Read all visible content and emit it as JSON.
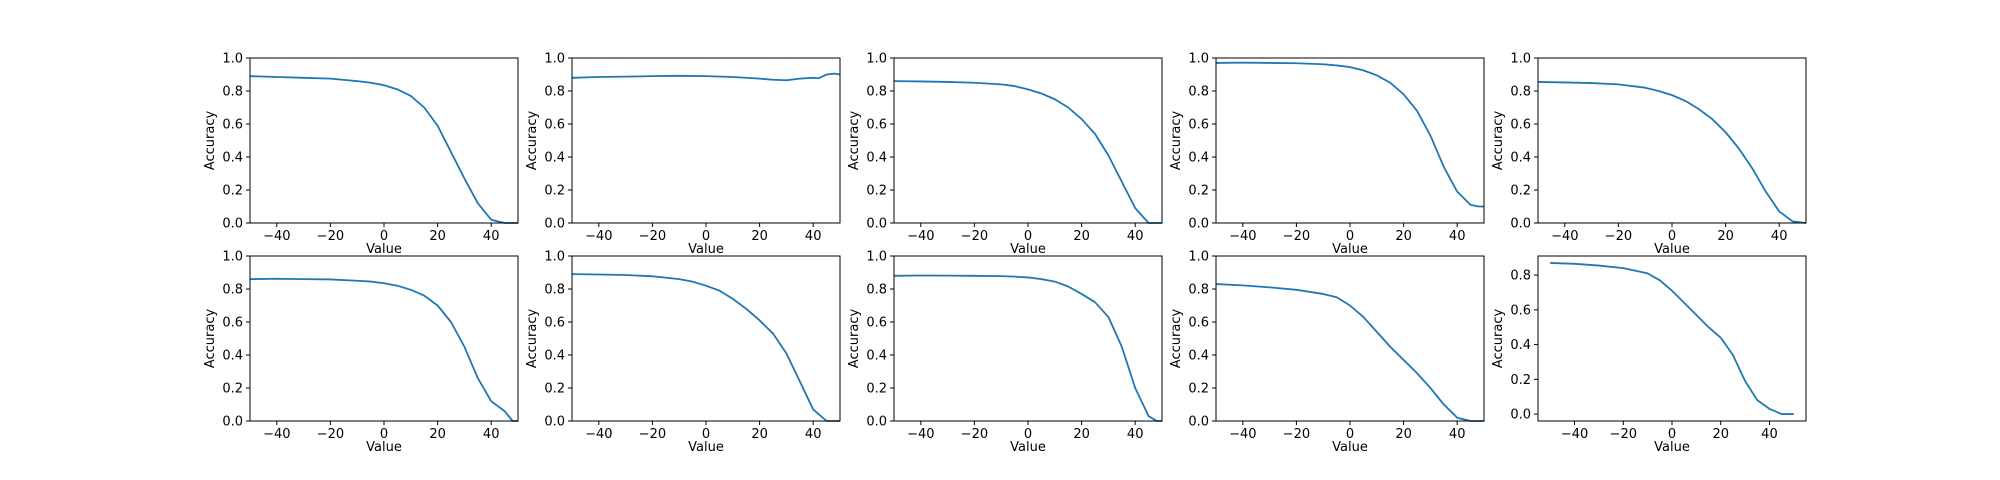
{
  "figure": {
    "background": "#ffffff",
    "line_color": "#1f77b4",
    "grid": false,
    "legend": "none"
  },
  "chart_data": [
    {
      "type": "line",
      "xlabel": "Value",
      "ylabel": "Accuracy",
      "xlim": [
        -50,
        50
      ],
      "ylim": [
        0,
        1
      ],
      "xticks": [
        -40,
        -20,
        0,
        20,
        40
      ],
      "xtick_labels": [
        "−40",
        "−20",
        "0",
        "20",
        "40"
      ],
      "yticks": [
        0,
        0.2,
        0.4,
        0.6,
        0.8,
        1.0
      ],
      "ytick_labels": [
        "0.0",
        "0.2",
        "0.4",
        "0.6",
        "0.8",
        "1.0"
      ],
      "series": [
        {
          "x": [
            -50,
            -40,
            -30,
            -20,
            -10,
            -5,
            0,
            5,
            10,
            15,
            20,
            25,
            30,
            35,
            40,
            45,
            50
          ],
          "y": [
            0.89,
            0.885,
            0.88,
            0.875,
            0.86,
            0.85,
            0.835,
            0.81,
            0.77,
            0.7,
            0.59,
            0.43,
            0.27,
            0.12,
            0.02,
            0.0,
            0.0
          ]
        }
      ]
    },
    {
      "type": "line",
      "xlabel": "Value",
      "ylabel": "Accuracy",
      "xlim": [
        -50,
        50
      ],
      "ylim": [
        0,
        1
      ],
      "xticks": [
        -40,
        -20,
        0,
        20,
        40
      ],
      "xtick_labels": [
        "−40",
        "−20",
        "0",
        "20",
        "40"
      ],
      "yticks": [
        0,
        0.2,
        0.4,
        0.6,
        0.8,
        1.0
      ],
      "ytick_labels": [
        "0.0",
        "0.2",
        "0.4",
        "0.6",
        "0.8",
        "1.0"
      ],
      "series": [
        {
          "x": [
            -50,
            -40,
            -30,
            -20,
            -10,
            0,
            10,
            20,
            25,
            30,
            35,
            40,
            42,
            45,
            48,
            50
          ],
          "y": [
            0.88,
            0.885,
            0.887,
            0.89,
            0.892,
            0.89,
            0.885,
            0.875,
            0.868,
            0.865,
            0.875,
            0.88,
            0.877,
            0.9,
            0.905,
            0.9
          ]
        }
      ]
    },
    {
      "type": "line",
      "xlabel": "Value",
      "ylabel": "Accuracy",
      "xlim": [
        -50,
        50
      ],
      "ylim": [
        0,
        1
      ],
      "xticks": [
        -40,
        -20,
        0,
        20,
        40
      ],
      "xtick_labels": [
        "−40",
        "−20",
        "0",
        "20",
        "40"
      ],
      "yticks": [
        0,
        0.2,
        0.4,
        0.6,
        0.8,
        1.0
      ],
      "ytick_labels": [
        "0.0",
        "0.2",
        "0.4",
        "0.6",
        "0.8",
        "1.0"
      ],
      "series": [
        {
          "x": [
            -50,
            -40,
            -30,
            -20,
            -10,
            -5,
            0,
            5,
            10,
            15,
            20,
            25,
            30,
            35,
            40,
            45,
            50
          ],
          "y": [
            0.86,
            0.858,
            0.855,
            0.85,
            0.84,
            0.83,
            0.81,
            0.785,
            0.75,
            0.7,
            0.63,
            0.54,
            0.41,
            0.25,
            0.09,
            0.0,
            0.0
          ]
        }
      ]
    },
    {
      "type": "line",
      "xlabel": "Value",
      "ylabel": "Accuracy",
      "xlim": [
        -50,
        50
      ],
      "ylim": [
        0,
        1
      ],
      "xticks": [
        -40,
        -20,
        0,
        20,
        40
      ],
      "xtick_labels": [
        "−40",
        "−20",
        "0",
        "20",
        "40"
      ],
      "yticks": [
        0,
        0.2,
        0.4,
        0.6,
        0.8,
        1.0
      ],
      "ytick_labels": [
        "0.0",
        "0.2",
        "0.4",
        "0.6",
        "0.8",
        "1.0"
      ],
      "series": [
        {
          "x": [
            -50,
            -40,
            -30,
            -20,
            -10,
            -5,
            0,
            5,
            10,
            15,
            20,
            25,
            30,
            35,
            40,
            45,
            48,
            50
          ],
          "y": [
            0.97,
            0.972,
            0.97,
            0.968,
            0.962,
            0.955,
            0.945,
            0.925,
            0.895,
            0.85,
            0.78,
            0.68,
            0.53,
            0.34,
            0.19,
            0.11,
            0.1,
            0.1
          ]
        }
      ]
    },
    {
      "type": "line",
      "xlabel": "Value",
      "ylabel": "Accuracy",
      "xlim": [
        -50,
        50
      ],
      "ylim": [
        0,
        1
      ],
      "xticks": [
        -40,
        -20,
        0,
        20,
        40
      ],
      "xtick_labels": [
        "−40",
        "−20",
        "0",
        "20",
        "40"
      ],
      "yticks": [
        0,
        0.2,
        0.4,
        0.6,
        0.8,
        1.0
      ],
      "ytick_labels": [
        "0.0",
        "0.2",
        "0.4",
        "0.6",
        "0.8",
        "1.0"
      ],
      "series": [
        {
          "x": [
            -50,
            -40,
            -30,
            -20,
            -10,
            -5,
            0,
            5,
            10,
            15,
            20,
            25,
            30,
            35,
            40,
            45,
            50
          ],
          "y": [
            0.855,
            0.852,
            0.848,
            0.84,
            0.82,
            0.8,
            0.775,
            0.74,
            0.69,
            0.63,
            0.55,
            0.45,
            0.33,
            0.19,
            0.07,
            0.01,
            0.0
          ]
        }
      ]
    },
    {
      "type": "line",
      "xlabel": "Value",
      "ylabel": "Accuracy",
      "xlim": [
        -50,
        50
      ],
      "ylim": [
        0,
        1
      ],
      "xticks": [
        -40,
        -20,
        0,
        20,
        40
      ],
      "xtick_labels": [
        "−40",
        "−20",
        "0",
        "20",
        "40"
      ],
      "yticks": [
        0,
        0.2,
        0.4,
        0.6,
        0.8,
        1.0
      ],
      "ytick_labels": [
        "0.0",
        "0.2",
        "0.4",
        "0.6",
        "0.8",
        "1.0"
      ],
      "series": [
        {
          "x": [
            -50,
            -40,
            -30,
            -20,
            -10,
            -5,
            0,
            5,
            10,
            15,
            20,
            25,
            30,
            35,
            40,
            45,
            48,
            50
          ],
          "y": [
            0.86,
            0.862,
            0.86,
            0.858,
            0.85,
            0.845,
            0.835,
            0.82,
            0.795,
            0.76,
            0.7,
            0.6,
            0.45,
            0.26,
            0.12,
            0.06,
            0.0,
            0.0
          ]
        }
      ]
    },
    {
      "type": "line",
      "xlabel": "Value",
      "ylabel": "Accuracy",
      "xlim": [
        -50,
        50
      ],
      "ylim": [
        0,
        1
      ],
      "xticks": [
        -40,
        -20,
        0,
        20,
        40
      ],
      "xtick_labels": [
        "−40",
        "−20",
        "0",
        "20",
        "40"
      ],
      "yticks": [
        0,
        0.2,
        0.4,
        0.6,
        0.8,
        1.0
      ],
      "ytick_labels": [
        "0.0",
        "0.2",
        "0.4",
        "0.6",
        "0.8",
        "1.0"
      ],
      "series": [
        {
          "x": [
            -50,
            -40,
            -30,
            -20,
            -10,
            -5,
            0,
            5,
            10,
            15,
            20,
            25,
            30,
            35,
            40,
            45,
            50
          ],
          "y": [
            0.89,
            0.888,
            0.885,
            0.877,
            0.86,
            0.845,
            0.82,
            0.79,
            0.74,
            0.68,
            0.61,
            0.53,
            0.41,
            0.24,
            0.07,
            0.0,
            0.0
          ]
        }
      ]
    },
    {
      "type": "line",
      "xlabel": "Value",
      "ylabel": "Accuracy",
      "xlim": [
        -50,
        50
      ],
      "ylim": [
        0,
        1
      ],
      "xticks": [
        -40,
        -20,
        0,
        20,
        40
      ],
      "xtick_labels": [
        "−40",
        "−20",
        "0",
        "20",
        "40"
      ],
      "yticks": [
        0,
        0.2,
        0.4,
        0.6,
        0.8,
        1.0
      ],
      "ytick_labels": [
        "0.0",
        "0.2",
        "0.4",
        "0.6",
        "0.8",
        "1.0"
      ],
      "series": [
        {
          "x": [
            -50,
            -40,
            -30,
            -20,
            -10,
            -5,
            0,
            5,
            10,
            15,
            20,
            25,
            30,
            35,
            40,
            45,
            48,
            50
          ],
          "y": [
            0.88,
            0.882,
            0.881,
            0.88,
            0.878,
            0.875,
            0.87,
            0.86,
            0.845,
            0.815,
            0.77,
            0.72,
            0.63,
            0.45,
            0.2,
            0.03,
            0.0,
            0.0
          ]
        }
      ]
    },
    {
      "type": "line",
      "xlabel": "Value",
      "ylabel": "Accuracy",
      "xlim": [
        -50,
        50
      ],
      "ylim": [
        0,
        1
      ],
      "xticks": [
        -40,
        -20,
        0,
        20,
        40
      ],
      "xtick_labels": [
        "−40",
        "−20",
        "0",
        "20",
        "40"
      ],
      "yticks": [
        0,
        0.2,
        0.4,
        0.6,
        0.8,
        1.0
      ],
      "ytick_labels": [
        "0.0",
        "0.2",
        "0.4",
        "0.6",
        "0.8",
        "1.0"
      ],
      "series": [
        {
          "x": [
            -50,
            -40,
            -30,
            -20,
            -10,
            -5,
            0,
            5,
            10,
            15,
            20,
            25,
            30,
            35,
            40,
            45,
            50
          ],
          "y": [
            0.83,
            0.822,
            0.81,
            0.795,
            0.77,
            0.75,
            0.7,
            0.63,
            0.54,
            0.45,
            0.37,
            0.29,
            0.2,
            0.1,
            0.02,
            0.0,
            0.0
          ]
        }
      ]
    },
    {
      "type": "line",
      "xlabel": "Value",
      "ylabel": "Accuracy",
      "xlim": [
        -55,
        55
      ],
      "ylim": [
        -0.04,
        0.91
      ],
      "xticks": [
        -40,
        -20,
        0,
        20,
        40
      ],
      "xtick_labels": [
        "−40",
        "−20",
        "0",
        "20",
        "40"
      ],
      "yticks": [
        0,
        0.2,
        0.4,
        0.6,
        0.8
      ],
      "ytick_labels": [
        "0.0",
        "0.2",
        "0.4",
        "0.6",
        "0.8"
      ],
      "series": [
        {
          "x": [
            -50,
            -40,
            -30,
            -20,
            -10,
            -5,
            0,
            5,
            10,
            15,
            20,
            25,
            30,
            35,
            40,
            45,
            48,
            50
          ],
          "y": [
            0.87,
            0.865,
            0.855,
            0.84,
            0.81,
            0.77,
            0.71,
            0.64,
            0.57,
            0.5,
            0.44,
            0.34,
            0.19,
            0.08,
            0.03,
            0.0,
            0.0,
            0.0
          ]
        }
      ]
    }
  ]
}
